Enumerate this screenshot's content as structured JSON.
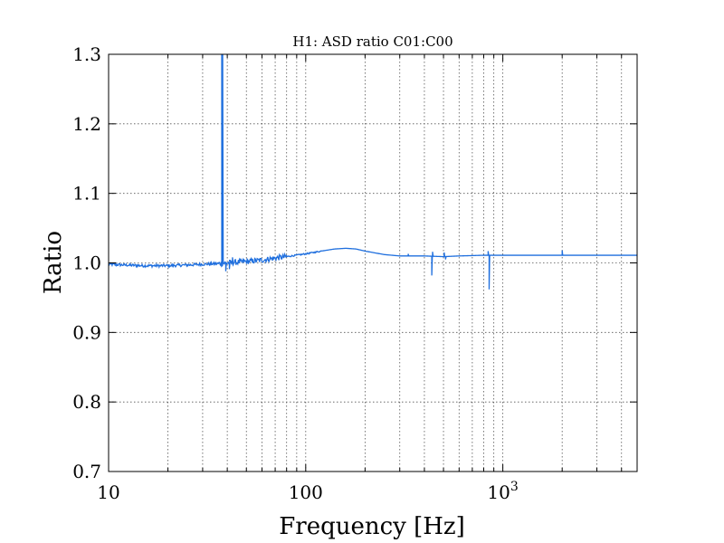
{
  "chart_data": {
    "type": "line",
    "title": "H1:  ASD ratio C01:C00",
    "xlabel": "Frequency [Hz]",
    "ylabel": "Ratio",
    "xscale": "log",
    "xlim": [
      10,
      4800
    ],
    "ylim": [
      0.7,
      1.3
    ],
    "grid": true,
    "x_ticks": [
      {
        "value": 10,
        "label": "10"
      },
      {
        "value": 100,
        "label": "100"
      },
      {
        "value": 1000,
        "label": "10",
        "sup": "3"
      }
    ],
    "y_ticks": [
      {
        "value": 0.7,
        "label": "0.7"
      },
      {
        "value": 0.8,
        "label": "0.8"
      },
      {
        "value": 0.9,
        "label": "0.9"
      },
      {
        "value": 1.0,
        "label": "1.0"
      },
      {
        "value": 1.1,
        "label": "1.1"
      },
      {
        "value": 1.2,
        "label": "1.2"
      },
      {
        "value": 1.3,
        "label": "1.3"
      }
    ],
    "series": [
      {
        "color": "#1f6fde",
        "baseline": [
          [
            10,
            0.998
          ],
          [
            12,
            0.997
          ],
          [
            15,
            0.996
          ],
          [
            20,
            0.996
          ],
          [
            25,
            0.997
          ],
          [
            30,
            0.998
          ],
          [
            36,
            0.999
          ],
          [
            40,
            1.0
          ],
          [
            45,
            1.001
          ],
          [
            50,
            1.002
          ],
          [
            60,
            1.004
          ],
          [
            70,
            1.007
          ],
          [
            80,
            1.009
          ],
          [
            100,
            1.013
          ],
          [
            120,
            1.017
          ],
          [
            140,
            1.02
          ],
          [
            160,
            1.021
          ],
          [
            180,
            1.02
          ],
          [
            200,
            1.017
          ],
          [
            250,
            1.012
          ],
          [
            300,
            1.01
          ],
          [
            400,
            1.01
          ],
          [
            500,
            1.009
          ],
          [
            600,
            1.01
          ],
          [
            800,
            1.011
          ],
          [
            1000,
            1.011
          ],
          [
            2000,
            1.011
          ],
          [
            4800,
            1.011
          ]
        ],
        "noise": [
          {
            "from": 10,
            "to": 36,
            "amplitude": 0.002
          },
          {
            "from": 36,
            "to": 80,
            "amplitude": 0.004
          },
          {
            "from": 80,
            "to": 120,
            "amplitude": 0.001
          }
        ],
        "spikes": [
          {
            "x": 37.5,
            "y": 1.3
          },
          {
            "x": 37.9,
            "y": 1.3
          },
          {
            "x": 38.3,
            "y": 1.0
          },
          {
            "x": 39.3,
            "y": 0.988
          },
          {
            "x": 41.0,
            "y": 0.991
          },
          {
            "x": 42.5,
            "y": 1.008
          },
          {
            "x": 331,
            "y": 1.013
          },
          {
            "x": 436,
            "y": 0.982
          },
          {
            "x": 440,
            "y": 1.016
          },
          {
            "x": 504,
            "y": 1.015
          },
          {
            "x": 512,
            "y": 1.005
          },
          {
            "x": 842,
            "y": 1.017
          },
          {
            "x": 852,
            "y": 0.962
          },
          {
            "x": 2000,
            "y": 1.018
          }
        ]
      }
    ]
  }
}
